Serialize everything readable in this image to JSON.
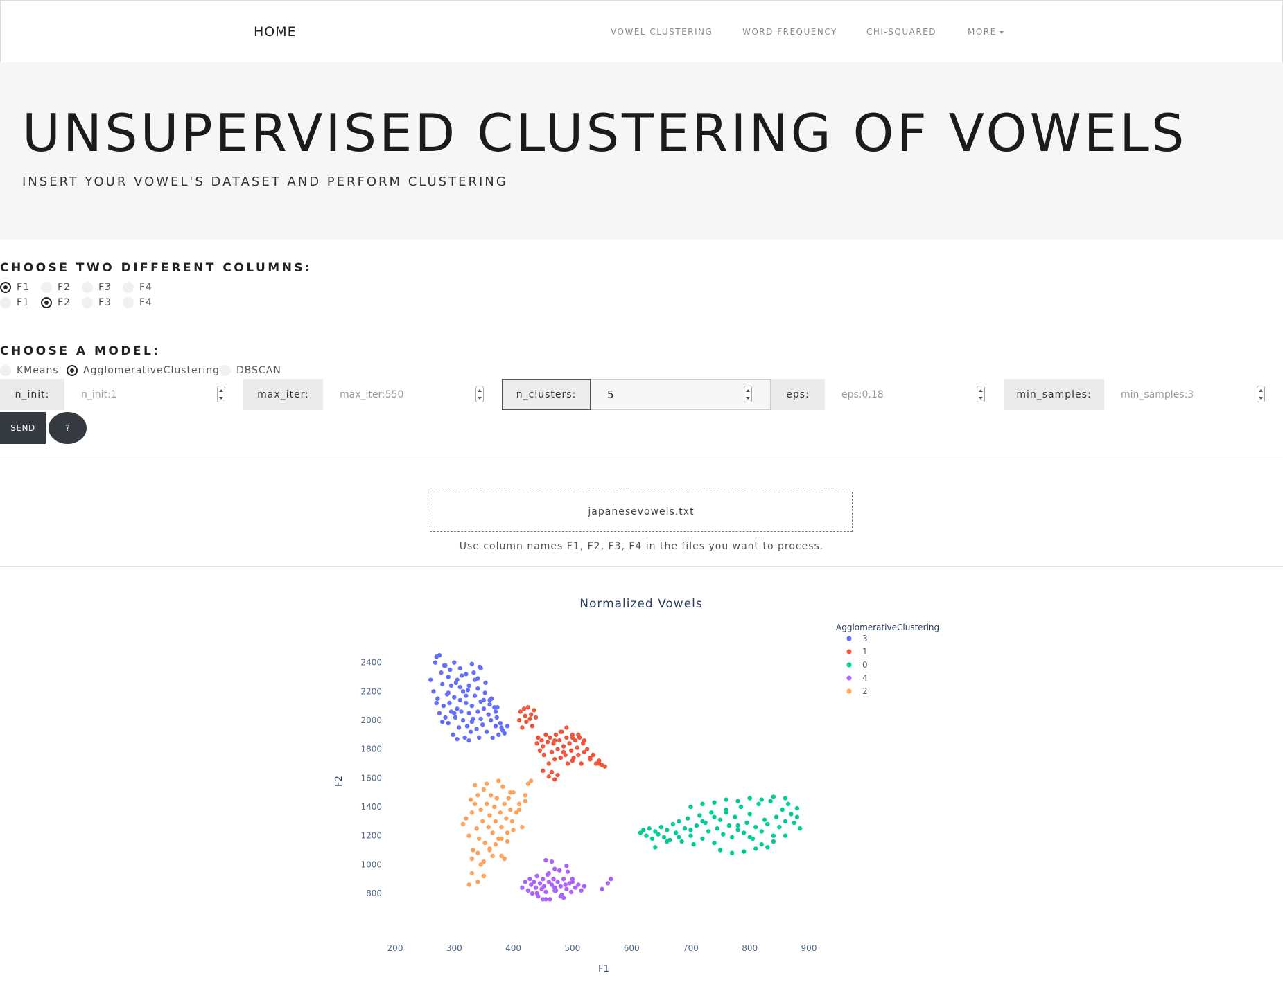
{
  "navbar": {
    "brand": "HOME",
    "links": [
      "VOWEL CLUSTERING",
      "WORD FREQUENCY",
      "CHI-SQUARED"
    ],
    "more_label": "MORE"
  },
  "hero": {
    "title": "UNSUPERVISED CLUSTERING OF VOWELS",
    "subtitle": "INSERT YOUR VOWEL'S DATASET AND PERFORM CLUSTERING"
  },
  "columns": {
    "heading": "CHOOSE TWO DIFFERENT COLUMNS:",
    "options": [
      "F1",
      "F2",
      "F3",
      "F4"
    ],
    "row1_selected": "F1",
    "row2_selected": "F2"
  },
  "model": {
    "heading": "CHOOSE A MODEL:",
    "options": [
      "KMeans",
      "AgglomerativeClustering",
      "DBSCAN"
    ],
    "selected": "AgglomerativeClustering"
  },
  "params": {
    "n_init_label": "n_init:",
    "n_init_placeholder": "n_init:1",
    "max_iter_label": "max_iter:",
    "max_iter_placeholder": "max_iter:550",
    "n_clusters_label": "n_clusters:",
    "n_clusters_value": "5",
    "eps_label": "eps:",
    "eps_placeholder": "eps:0.18",
    "min_samples_label": "min_samples:",
    "min_samples_placeholder": "min_samples:3"
  },
  "buttons": {
    "send": "SEND",
    "help": "?"
  },
  "upload": {
    "filename": "japanesevowels.txt",
    "hint": "Use column names F1, F2, F3, F4 in the files you want to process."
  },
  "chart_data": {
    "type": "scatter",
    "title": "Normalized Vowels",
    "xlabel": "F1",
    "ylabel": "F2",
    "xlim": [
      200,
      900
    ],
    "ylim": [
      680,
      2480
    ],
    "xticks": [
      200,
      300,
      400,
      500,
      600,
      700,
      800,
      900
    ],
    "yticks": [
      800,
      1000,
      1200,
      1400,
      1600,
      1800,
      2000,
      2200,
      2400
    ],
    "legend_title": "AgglomerativeClustering",
    "legend_position": "top-right",
    "grid": false,
    "series": [
      {
        "name": "3",
        "color": "#636efa",
        "x": [
          260,
          265,
          270,
          272,
          275,
          278,
          280,
          282,
          285,
          285,
          288,
          290,
          290,
          292,
          295,
          295,
          298,
          300,
          300,
          302,
          305,
          305,
          308,
          310,
          310,
          312,
          315,
          315,
          318,
          320,
          320,
          322,
          325,
          325,
          328,
          330,
          330,
          332,
          335,
          335,
          338,
          340,
          340,
          342,
          345,
          345,
          348,
          350,
          352,
          355,
          358,
          360,
          362,
          365,
          368,
          370,
          372,
          375,
          378,
          380,
          385,
          390,
          268,
          275,
          283,
          293,
          303,
          313,
          323,
          333,
          343,
          353,
          363,
          373,
          280,
          300,
          320,
          340,
          360,
          270,
          290,
          310,
          330,
          350,
          370,
          382,
          345,
          325,
          305
        ],
        "y": [
          2280,
          2200,
          2440,
          2150,
          2050,
          2330,
          2250,
          2100,
          2020,
          2380,
          2180,
          1980,
          2300,
          2120,
          2060,
          2240,
          1900,
          2160,
          2400,
          2020,
          2080,
          2280,
          1950,
          2140,
          2360,
          2060,
          2000,
          2200,
          1880,
          2120,
          2320,
          1960,
          2050,
          2240,
          1920,
          2100,
          2390,
          2010,
          2170,
          2280,
          1940,
          2060,
          2220,
          1880,
          2130,
          2010,
          1970,
          2080,
          2190,
          1920,
          2040,
          2140,
          2000,
          1880,
          2090,
          1960,
          2020,
          1900,
          1980,
          1950,
          1910,
          1960,
          2400,
          2450,
          2380,
          2350,
          2260,
          2310,
          2210,
          2330,
          2370,
          2260,
          2150,
          2090,
          1990,
          2050,
          2170,
          2290,
          2110,
          2120,
          2190,
          2230,
          1990,
          2140,
          2060,
          1930,
          2360,
          1860,
          1870
        ]
      },
      {
        "name": "1",
        "color": "#ef553b",
        "x": [
          410,
          412,
          415,
          418,
          420,
          422,
          425,
          428,
          430,
          432,
          435,
          438,
          440,
          442,
          445,
          448,
          450,
          452,
          455,
          458,
          460,
          462,
          465,
          468,
          470,
          472,
          475,
          478,
          480,
          482,
          485,
          488,
          490,
          492,
          495,
          498,
          500,
          502,
          505,
          508,
          510,
          512,
          515,
          518,
          520,
          525,
          530,
          535,
          540,
          545,
          550,
          555,
          450,
          460,
          470,
          480,
          490,
          500,
          510,
          520,
          470,
          485,
          500,
          515,
          530,
          545,
          465,
          475
        ],
        "y": [
          2000,
          2060,
          1950,
          2080,
          2030,
          1990,
          2090,
          2010,
          2040,
          1960,
          2070,
          2020,
          1840,
          1880,
          1790,
          1860,
          1820,
          1760,
          1900,
          1850,
          1700,
          1880,
          1780,
          1840,
          1730,
          1900,
          1800,
          1860,
          1740,
          1920,
          1820,
          1760,
          1880,
          1700,
          1840,
          1790,
          1900,
          1740,
          1860,
          1810,
          1760,
          1880,
          1700,
          1840,
          1780,
          1800,
          1730,
          1760,
          1700,
          1720,
          1690,
          1680,
          1650,
          1610,
          1590,
          1920,
          1950,
          1880,
          1900,
          1860,
          1860,
          1780,
          1720,
          1700,
          1740,
          1700,
          1640,
          1620
        ]
      },
      {
        "name": "0",
        "color": "#00cc96",
        "x": [
          615,
          620,
          625,
          630,
          635,
          640,
          645,
          650,
          655,
          660,
          665,
          670,
          675,
          680,
          685,
          690,
          695,
          700,
          705,
          710,
          715,
          720,
          725,
          730,
          735,
          740,
          745,
          750,
          755,
          760,
          765,
          770,
          775,
          780,
          785,
          790,
          795,
          800,
          805,
          810,
          815,
          820,
          825,
          830,
          835,
          840,
          845,
          850,
          855,
          860,
          865,
          870,
          875,
          880,
          885,
          640,
          660,
          680,
          700,
          720,
          740,
          760,
          780,
          800,
          820,
          840,
          860,
          880,
          700,
          720,
          740,
          760,
          780,
          800,
          820,
          840,
          860,
          750,
          770,
          790,
          810,
          830
        ],
        "y": [
          1220,
          1240,
          1200,
          1250,
          1180,
          1230,
          1210,
          1260,
          1190,
          1240,
          1170,
          1280,
          1220,
          1300,
          1160,
          1250,
          1320,
          1200,
          1140,
          1270,
          1340,
          1180,
          1290,
          1230,
          1360,
          1150,
          1250,
          1310,
          1210,
          1380,
          1270,
          1190,
          1330,
          1240,
          1400,
          1220,
          1290,
          1350,
          1180,
          1260,
          1420,
          1230,
          1310,
          1280,
          1440,
          1200,
          1330,
          1260,
          1380,
          1300,
          1420,
          1350,
          1290,
          1330,
          1250,
          1120,
          1160,
          1190,
          1240,
          1300,
          1330,
          1360,
          1270,
          1190,
          1140,
          1160,
          1200,
          1390,
          1400,
          1420,
          1430,
          1450,
          1440,
          1460,
          1450,
          1470,
          1460,
          1100,
          1080,
          1090,
          1110,
          1120
        ]
      },
      {
        "name": "4",
        "color": "#ab63fa",
        "x": [
          415,
          420,
          425,
          428,
          430,
          432,
          435,
          438,
          440,
          442,
          445,
          448,
          450,
          452,
          455,
          458,
          460,
          462,
          465,
          468,
          470,
          472,
          475,
          478,
          480,
          482,
          485,
          488,
          490,
          492,
          495,
          498,
          500,
          505,
          510,
          515,
          520,
          440,
          450,
          460,
          470,
          480,
          490,
          500,
          440,
          455,
          470,
          485,
          550,
          560,
          565,
          455,
          465
        ],
        "y": [
          840,
          880,
          820,
          900,
          860,
          800,
          880,
          840,
          920,
          780,
          870,
          830,
          900,
          850,
          810,
          930,
          880,
          760,
          860,
          900,
          840,
          820,
          880,
          960,
          850,
          790,
          900,
          860,
          830,
          950,
          870,
          810,
          880,
          840,
          860,
          820,
          850,
          800,
          760,
          940,
          970,
          780,
          990,
          900,
          920,
          760,
          820,
          770,
          830,
          870,
          900,
          1030,
          1020
        ]
      },
      {
        "name": "2",
        "color": "#ffa15a",
        "x": [
          315,
          320,
          325,
          328,
          330,
          332,
          335,
          338,
          340,
          342,
          345,
          348,
          350,
          352,
          355,
          358,
          360,
          362,
          365,
          368,
          370,
          372,
          375,
          378,
          380,
          382,
          385,
          388,
          390,
          392,
          395,
          398,
          400,
          405,
          410,
          415,
          420,
          425,
          330,
          340,
          350,
          360,
          370,
          380,
          390,
          400,
          410,
          420,
          430,
          335,
          355,
          375,
          395,
          345,
          365,
          385,
          340,
          350,
          330,
          325,
          360,
          380
        ],
        "y": [
          1280,
          1320,
          1200,
          1450,
          1360,
          1100,
          1420,
          1250,
          1480,
          1180,
          1380,
          1300,
          1520,
          1150,
          1420,
          1260,
          1340,
          1480,
          1220,
          1400,
          1300,
          1460,
          1180,
          1360,
          1260,
          1540,
          1420,
          1320,
          1220,
          1460,
          1380,
          1300,
          1500,
          1360,
          1420,
          1260,
          1480,
          1560,
          1040,
          1080,
          1020,
          1100,
          1140,
          1060,
          1160,
          1240,
          1380,
          1440,
          1580,
          1550,
          1560,
          1580,
          1500,
          1000,
          1060,
          1040,
          880,
          920,
          940,
          860,
          1110,
          1180
        ]
      }
    ]
  }
}
